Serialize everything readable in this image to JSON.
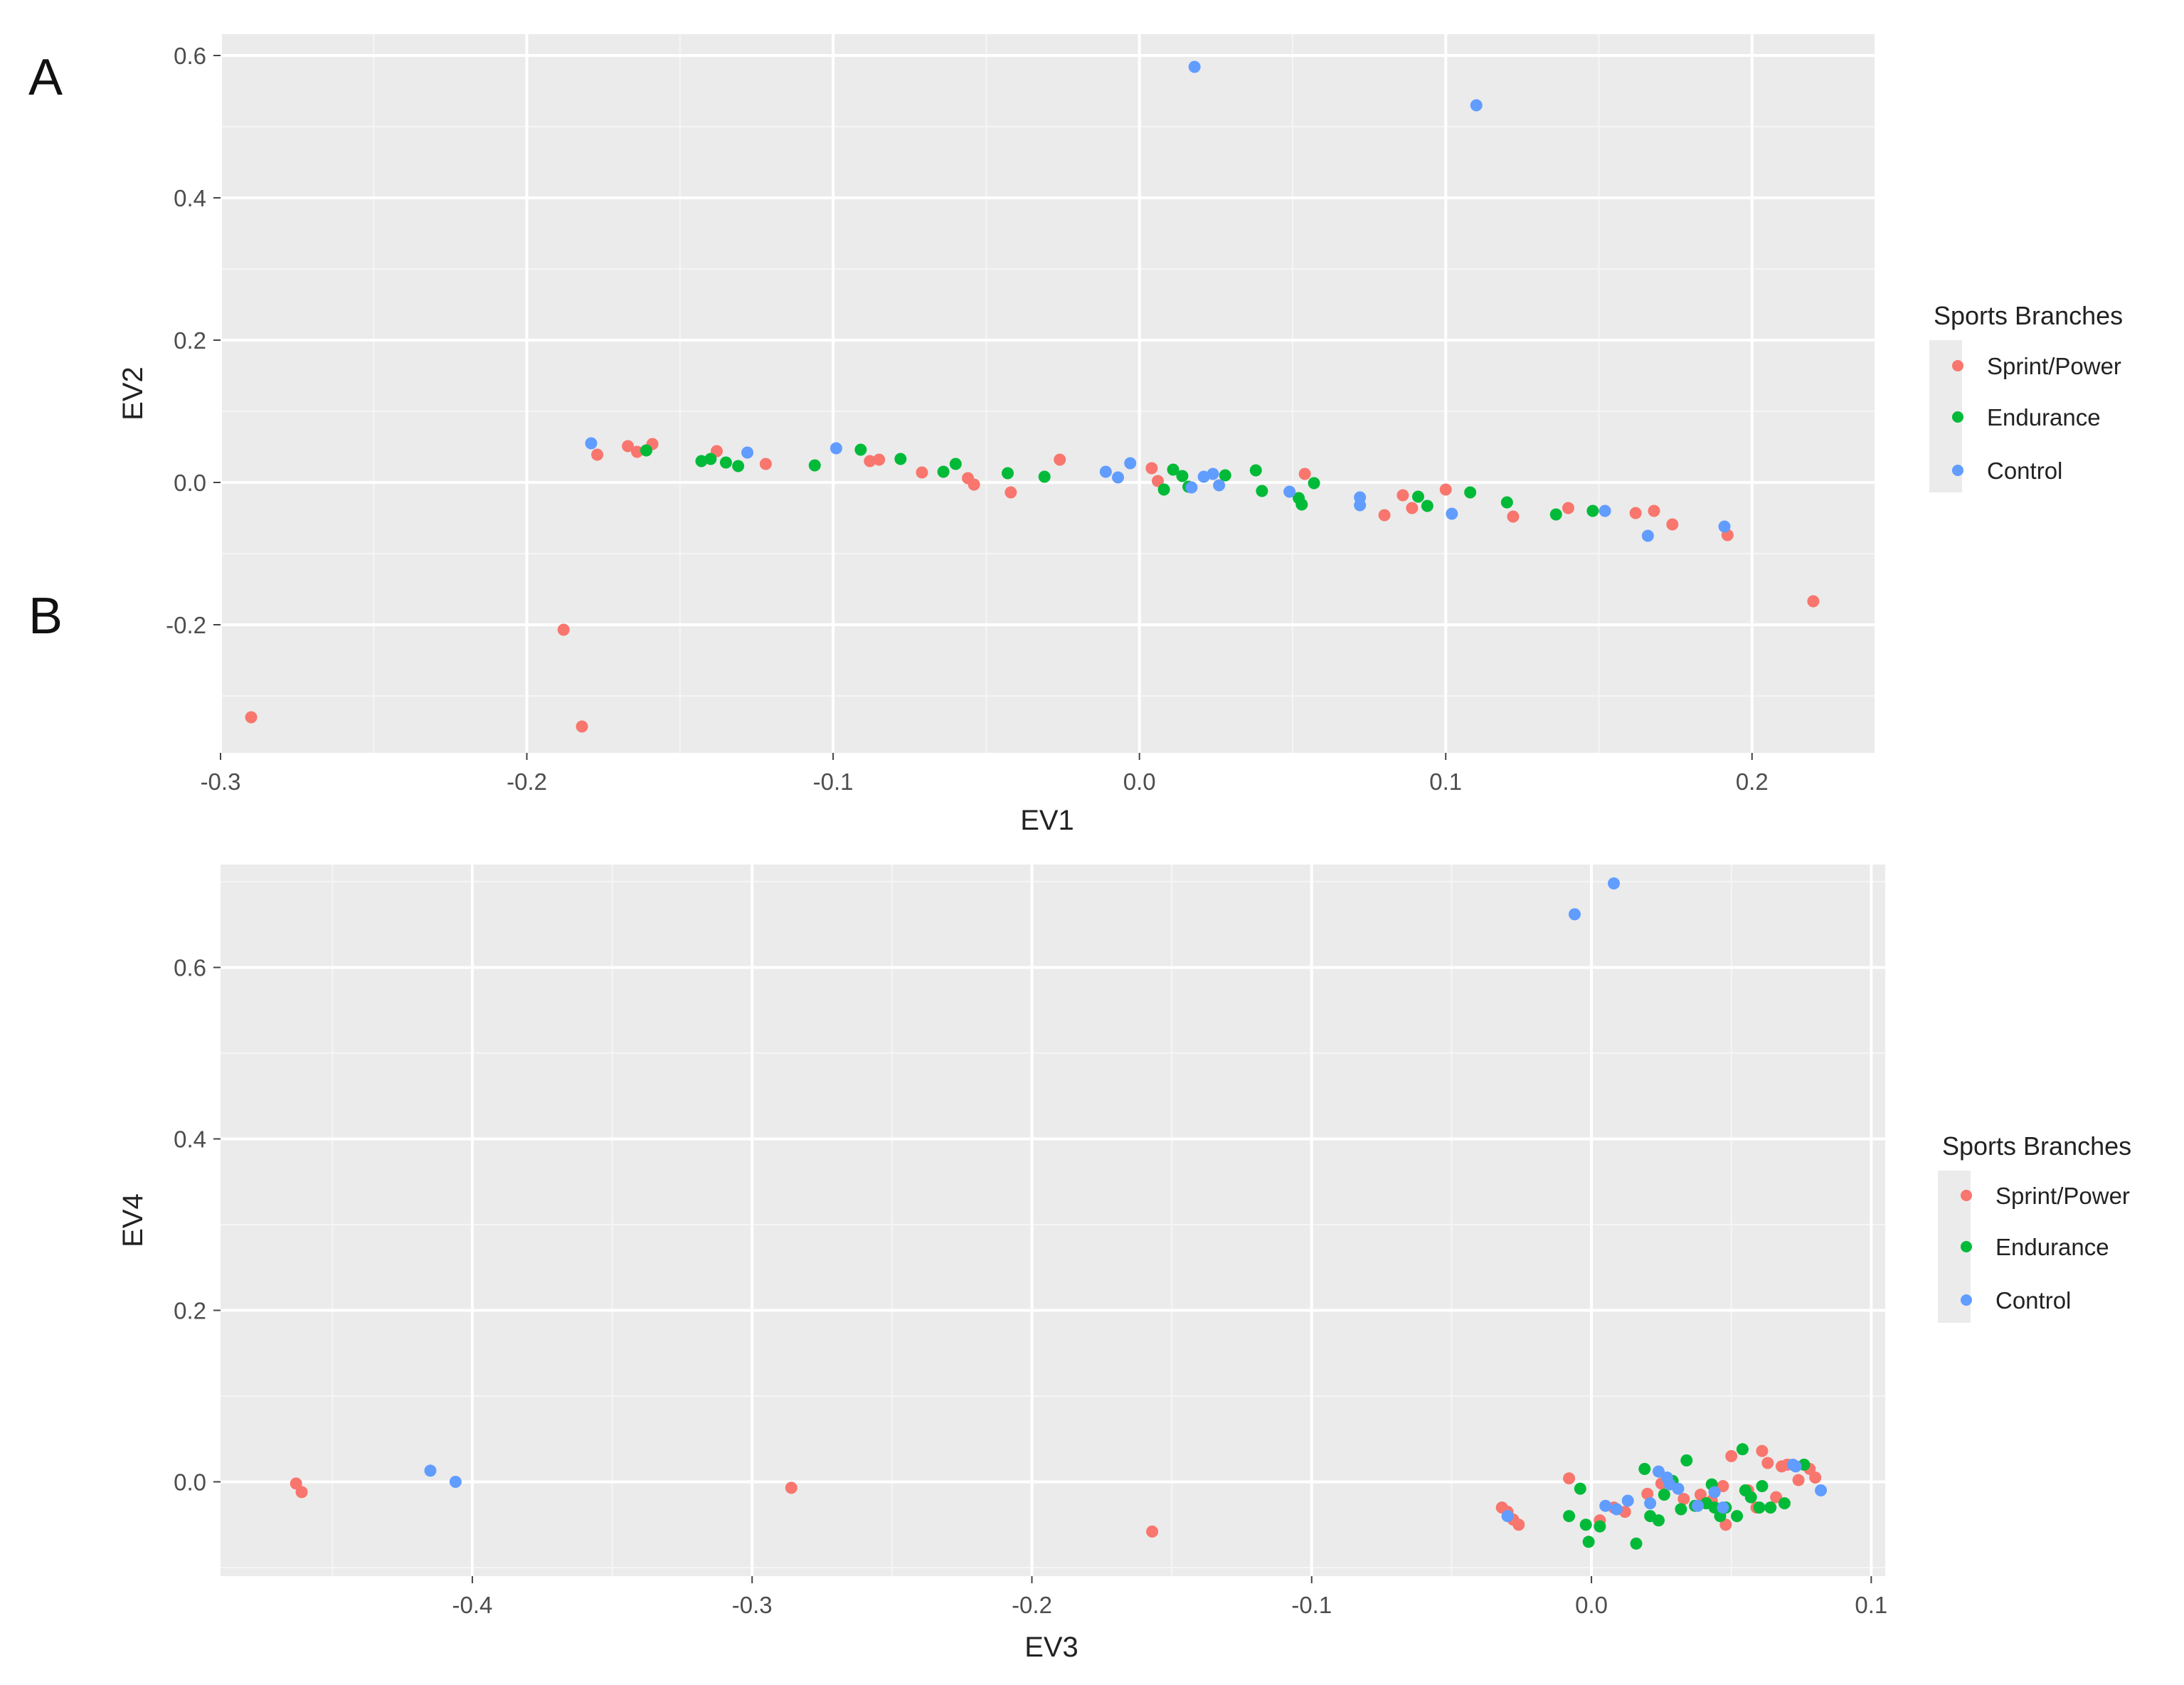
{
  "panels": [
    {
      "letter": "A"
    },
    {
      "letter": "B"
    }
  ],
  "legend": {
    "title": "Sports Branches",
    "entries": [
      {
        "label": "Sprint/Power",
        "color": "#F8766D"
      },
      {
        "label": "Endurance",
        "color": "#00BA38"
      },
      {
        "label": "Control",
        "color": "#619CFF"
      }
    ]
  },
  "chart_data": [
    {
      "type": "scatter",
      "xlabel": "EV1",
      "ylabel": "EV2",
      "xlim": [
        -0.3,
        0.24
      ],
      "ylim": [
        -0.38,
        0.63
      ],
      "grid": true,
      "legend_placement": "right",
      "x_ticks": [
        -0.3,
        -0.2,
        -0.1,
        0.0,
        0.1,
        0.2
      ],
      "x_tick_labels": [
        "-0.3",
        "-0.2",
        "-0.1",
        "0.0",
        "0.1",
        "0.2"
      ],
      "y_ticks": [
        -0.2,
        0.0,
        0.2,
        0.4,
        0.6
      ],
      "y_tick_labels": [
        "-0.2",
        "0.0",
        "0.2",
        "0.4",
        "0.6"
      ],
      "series": [
        {
          "name": "Sprint/Power",
          "color": "#F8766D",
          "points": [
            [
              -0.29,
              -0.33
            ],
            [
              -0.188,
              -0.207
            ],
            [
              -0.182,
              -0.343
            ],
            [
              0.22,
              -0.167
            ],
            [
              -0.177,
              0.039
            ],
            [
              -0.167,
              0.051
            ],
            [
              -0.164,
              0.043
            ],
            [
              -0.159,
              0.054
            ],
            [
              -0.138,
              0.044
            ],
            [
              -0.122,
              0.026
            ],
            [
              -0.088,
              0.03
            ],
            [
              -0.085,
              0.032
            ],
            [
              -0.071,
              0.014
            ],
            [
              -0.056,
              0.006
            ],
            [
              -0.054,
              -0.003
            ],
            [
              -0.042,
              -0.014
            ],
            [
              -0.026,
              0.032
            ],
            [
              0.004,
              0.02
            ],
            [
              0.006,
              0.002
            ],
            [
              0.054,
              0.012
            ],
            [
              0.08,
              -0.046
            ],
            [
              0.086,
              -0.018
            ],
            [
              0.089,
              -0.036
            ],
            [
              0.1,
              -0.01
            ],
            [
              0.122,
              -0.048
            ],
            [
              0.14,
              -0.036
            ],
            [
              0.162,
              -0.043
            ],
            [
              0.168,
              -0.04
            ],
            [
              0.174,
              -0.059
            ],
            [
              0.192,
              -0.074
            ]
          ]
        },
        {
          "name": "Endurance",
          "color": "#00BA38",
          "points": [
            [
              -0.161,
              0.045
            ],
            [
              -0.143,
              0.03
            ],
            [
              -0.14,
              0.033
            ],
            [
              -0.135,
              0.028
            ],
            [
              -0.131,
              0.023
            ],
            [
              -0.106,
              0.024
            ],
            [
              -0.091,
              0.046
            ],
            [
              -0.078,
              0.033
            ],
            [
              -0.064,
              0.015
            ],
            [
              -0.06,
              0.026
            ],
            [
              -0.043,
              0.013
            ],
            [
              -0.031,
              0.008
            ],
            [
              0.008,
              -0.01
            ],
            [
              0.011,
              0.018
            ],
            [
              0.014,
              0.009
            ],
            [
              0.016,
              -0.006
            ],
            [
              0.028,
              0.01
            ],
            [
              0.038,
              0.017
            ],
            [
              0.04,
              -0.012
            ],
            [
              0.052,
              -0.022
            ],
            [
              0.053,
              -0.031
            ],
            [
              0.057,
              -0.001
            ],
            [
              0.091,
              -0.02
            ],
            [
              0.094,
              -0.033
            ],
            [
              0.108,
              -0.014
            ],
            [
              0.12,
              -0.028
            ],
            [
              0.136,
              -0.045
            ],
            [
              0.148,
              -0.04
            ]
          ]
        },
        {
          "name": "Control",
          "color": "#619CFF",
          "points": [
            [
              0.018,
              0.584
            ],
            [
              0.11,
              0.53
            ],
            [
              -0.179,
              0.055
            ],
            [
              -0.128,
              0.042
            ],
            [
              -0.099,
              0.048
            ],
            [
              -0.011,
              0.015
            ],
            [
              -0.007,
              0.007
            ],
            [
              -0.003,
              0.027
            ],
            [
              0.017,
              -0.007
            ],
            [
              0.021,
              0.008
            ],
            [
              0.024,
              0.012
            ],
            [
              0.026,
              -0.004
            ],
            [
              0.049,
              -0.013
            ],
            [
              0.072,
              -0.021
            ],
            [
              0.072,
              -0.032
            ],
            [
              0.102,
              -0.044
            ],
            [
              0.152,
              -0.04
            ],
            [
              0.166,
              -0.075
            ],
            [
              0.191,
              -0.062
            ]
          ]
        }
      ]
    },
    {
      "type": "scatter",
      "xlabel": "EV3",
      "ylabel": "EV4",
      "xlim": [
        -0.49,
        0.105
      ],
      "ylim": [
        -0.11,
        0.72
      ],
      "grid": true,
      "legend_placement": "right",
      "x_ticks": [
        -0.4,
        -0.3,
        -0.2,
        -0.1,
        0.0,
        0.1
      ],
      "x_tick_labels": [
        "-0.4",
        "-0.3",
        "-0.2",
        "-0.1",
        "0.0",
        "0.1"
      ],
      "y_ticks": [
        0.0,
        0.2,
        0.4,
        0.6
      ],
      "y_tick_labels": [
        "0.0",
        "0.2",
        "0.4",
        "0.6"
      ],
      "series": [
        {
          "name": "Sprint/Power",
          "color": "#F8766D",
          "points": [
            [
              -0.463,
              -0.002
            ],
            [
              -0.461,
              -0.012
            ],
            [
              -0.286,
              -0.007
            ],
            [
              -0.157,
              -0.058
            ],
            [
              -0.032,
              -0.03
            ],
            [
              -0.03,
              -0.035
            ],
            [
              -0.028,
              -0.044
            ],
            [
              -0.026,
              -0.05
            ],
            [
              -0.008,
              0.004
            ],
            [
              0.003,
              -0.045
            ],
            [
              0.008,
              -0.03
            ],
            [
              0.012,
              -0.035
            ],
            [
              0.02,
              -0.014
            ],
            [
              0.025,
              -0.002
            ],
            [
              0.033,
              -0.02
            ],
            [
              0.039,
              -0.015
            ],
            [
              0.043,
              -0.022
            ],
            [
              0.047,
              -0.005
            ],
            [
              0.048,
              -0.05
            ],
            [
              0.05,
              0.03
            ],
            [
              0.056,
              -0.01
            ],
            [
              0.059,
              -0.03
            ],
            [
              0.061,
              0.036
            ],
            [
              0.063,
              0.022
            ],
            [
              0.066,
              -0.018
            ],
            [
              0.068,
              0.018
            ],
            [
              0.07,
              0.02
            ],
            [
              0.074,
              0.002
            ],
            [
              0.078,
              0.015
            ],
            [
              0.08,
              0.005
            ]
          ]
        },
        {
          "name": "Endurance",
          "color": "#00BA38",
          "points": [
            [
              -0.008,
              -0.04
            ],
            [
              -0.004,
              -0.008
            ],
            [
              -0.002,
              -0.05
            ],
            [
              -0.001,
              -0.07
            ],
            [
              0.003,
              -0.052
            ],
            [
              0.016,
              -0.072
            ],
            [
              0.019,
              0.015
            ],
            [
              0.021,
              -0.04
            ],
            [
              0.024,
              -0.045
            ],
            [
              0.026,
              -0.015
            ],
            [
              0.029,
              0.001
            ],
            [
              0.032,
              -0.032
            ],
            [
              0.034,
              0.025
            ],
            [
              0.037,
              -0.028
            ],
            [
              0.041,
              -0.025
            ],
            [
              0.043,
              -0.003
            ],
            [
              0.044,
              -0.03
            ],
            [
              0.046,
              -0.04
            ],
            [
              0.048,
              -0.03
            ],
            [
              0.052,
              -0.04
            ],
            [
              0.054,
              0.038
            ],
            [
              0.055,
              -0.01
            ],
            [
              0.057,
              -0.018
            ],
            [
              0.06,
              -0.03
            ],
            [
              0.061,
              -0.005
            ],
            [
              0.064,
              -0.03
            ],
            [
              0.069,
              -0.025
            ],
            [
              0.076,
              0.02
            ]
          ]
        },
        {
          "name": "Control",
          "color": "#619CFF",
          "points": [
            [
              -0.006,
              0.662
            ],
            [
              0.008,
              0.698
            ],
            [
              -0.415,
              0.013
            ],
            [
              -0.406,
              0.0
            ],
            [
              -0.03,
              -0.04
            ],
            [
              0.005,
              -0.028
            ],
            [
              0.009,
              -0.032
            ],
            [
              0.013,
              -0.022
            ],
            [
              0.021,
              -0.025
            ],
            [
              0.024,
              0.012
            ],
            [
              0.027,
              0.005
            ],
            [
              0.028,
              -0.003
            ],
            [
              0.031,
              -0.008
            ],
            [
              0.038,
              -0.028
            ],
            [
              0.044,
              -0.012
            ],
            [
              0.047,
              -0.03
            ],
            [
              0.072,
              0.02
            ],
            [
              0.073,
              0.018
            ],
            [
              0.082,
              -0.01
            ]
          ]
        }
      ]
    }
  ]
}
